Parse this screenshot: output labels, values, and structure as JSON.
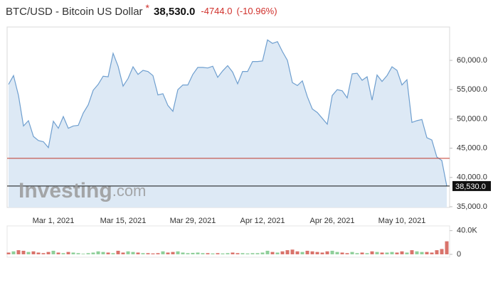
{
  "header": {
    "symbol": "BTC/USD - Bitcoin US Dollar",
    "marker": "*",
    "price": "38,530.0",
    "change": "-4744.0",
    "change_percent": "(-10.96%)"
  },
  "watermark": {
    "brand": "Investing",
    "suffix": ".com"
  },
  "chart_data": [
    {
      "type": "area",
      "categories": [
        null,
        null,
        null,
        null,
        null,
        null,
        null,
        null,
        null,
        "Mar 1, 2021",
        null,
        null,
        null,
        null,
        null,
        null,
        null,
        null,
        null,
        null,
        null,
        null,
        null,
        "Mar 15, 2021",
        null,
        null,
        null,
        null,
        null,
        null,
        null,
        null,
        null,
        null,
        null,
        null,
        null,
        "Mar 29, 2021",
        null,
        null,
        null,
        null,
        null,
        null,
        null,
        null,
        null,
        null,
        null,
        null,
        null,
        "Apr 12, 2021",
        null,
        null,
        null,
        null,
        null,
        null,
        null,
        null,
        null,
        null,
        null,
        null,
        null,
        "Apr 26, 2021",
        null,
        null,
        null,
        null,
        null,
        null,
        null,
        null,
        null,
        null,
        null,
        null,
        null,
        "May 10, 2021",
        null,
        null,
        null,
        null,
        null,
        null,
        null,
        null,
        null
      ],
      "series": [
        {
          "color": "#6f9fcf",
          "fill": "#dde9f5",
          "values": [
            55900,
            57400,
            54000,
            48800,
            49700,
            47000,
            46300,
            46100,
            45100,
            49600,
            48400,
            50400,
            48400,
            48800,
            48900,
            51000,
            52400,
            54900,
            55900,
            57300,
            57200,
            61200,
            59000,
            55600,
            56900,
            58900,
            57600,
            58300,
            58100,
            57400,
            54100,
            54300,
            52300,
            51300,
            55000,
            55800,
            55800,
            57600,
            58800,
            58800,
            58700,
            59000,
            57100,
            58200,
            59100,
            58000,
            56000,
            58100,
            58100,
            59800,
            59800,
            59900,
            63500,
            62900,
            63200,
            61500,
            60000,
            56200,
            55700,
            56500,
            53800,
            51700,
            51100,
            50100,
            49100,
            54000,
            55000,
            54800,
            53600,
            57700,
            57800,
            56600,
            57200,
            53200,
            57500,
            56400,
            57400,
            58900,
            58300,
            55800,
            56700,
            49400,
            49700,
            49900,
            46800,
            46400,
            43500,
            42900,
            38530
          ]
        }
      ],
      "ylim": [
        34880,
        65700
      ],
      "yticks": [
        {
          "value": 35000,
          "label": "35,000.0"
        },
        {
          "value": 40000,
          "label": "40,000.0"
        },
        {
          "value": 45000,
          "label": "45,000.0"
        },
        {
          "value": 50000,
          "label": "50,000.0"
        },
        {
          "value": 55000,
          "label": "55,000.0"
        },
        {
          "value": 60000,
          "label": "60,000.0"
        }
      ],
      "previous_close": 43274,
      "previous_close_color": "#c0392b",
      "last_price_color": "#111111"
    },
    {
      "type": "bar",
      "values": [
        3000,
        5000,
        7000,
        6000,
        4000,
        5000,
        3000,
        2000,
        4000,
        6000,
        3000,
        2000,
        4000,
        3000,
        2000,
        1000,
        2000,
        3000,
        5000,
        4000,
        3000,
        2000,
        6000,
        3000,
        5000,
        4000,
        3000,
        2000,
        2000,
        1500,
        2000,
        5000,
        3000,
        4000,
        5000,
        3000,
        2000,
        2500,
        3000,
        2000,
        2000,
        1500,
        2000,
        1500,
        2000,
        3000,
        2000,
        2000,
        1500,
        2000,
        2000,
        3000,
        6000,
        4000,
        3000,
        5000,
        7000,
        8000,
        5000,
        4000,
        6000,
        5000,
        4000,
        3000,
        5000,
        6000,
        4000,
        3000,
        2000,
        4000,
        2000,
        3000,
        2000,
        5000,
        4000,
        3000,
        3000,
        4000,
        3000,
        5000,
        3000,
        7000,
        5000,
        4000,
        4000,
        3000,
        7000,
        9000,
        22000
      ],
      "up_color": "#8fcf9a",
      "down_color": "#d9736b",
      "ylim": [
        0,
        48000
      ],
      "yticks": [
        0,
        {
          "value": 40000,
          "label": "40.0K"
        }
      ]
    }
  ]
}
